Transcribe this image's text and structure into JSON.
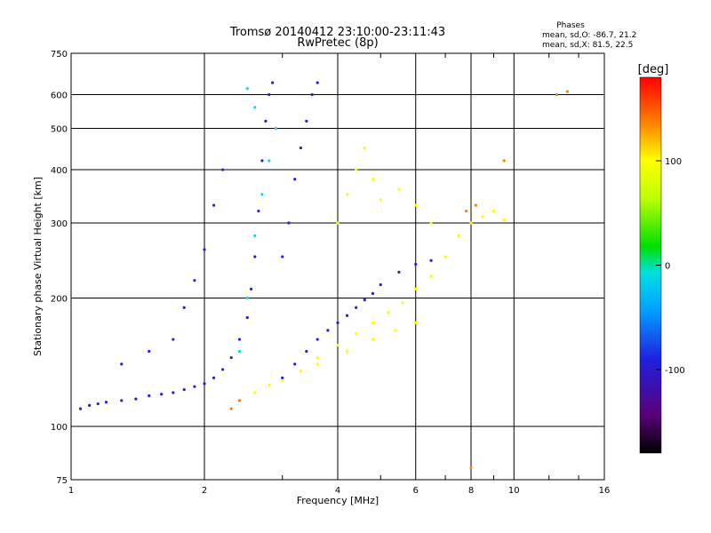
{
  "chart_data": {
    "type": "scatter",
    "title": "Tromsø 20140412 23:10:00-23:11:43",
    "subtitle": "RwPretec (8p)",
    "xlabel": "Frequency [MHz]",
    "ylabel": "Stationary phase Virtual Height [km]",
    "x_scale": "log",
    "y_scale": "log",
    "xlim": [
      1,
      16
    ],
    "ylim": [
      75,
      750
    ],
    "x_ticks": [
      1,
      2,
      4,
      6,
      8,
      10,
      16
    ],
    "y_ticks": [
      75,
      100,
      200,
      300,
      400,
      500,
      600,
      750
    ],
    "grid": true,
    "stats": {
      "heading": "Phases",
      "line_o": "mean, sd,O: -86.7, 21.2",
      "line_x": "mean, sd,X: 81.5, 22.5"
    },
    "colorbar": {
      "label": "[deg]",
      "range": [
        -180,
        180
      ],
      "ticks": [
        100,
        0,
        -100
      ],
      "colors": [
        "#000000",
        "#6a0080",
        "#2020e0",
        "#00a0ff",
        "#00e0e0",
        "#00e000",
        "#c0ff00",
        "#ffff00",
        "#ff8000",
        "#ff0000"
      ]
    },
    "series": [
      {
        "comment": "O-mode trace (blue/purple)",
        "phase": -95,
        "points": [
          [
            1.05,
            110
          ],
          [
            1.1,
            112
          ],
          [
            1.15,
            113
          ],
          [
            1.2,
            114
          ],
          [
            1.3,
            115
          ],
          [
            1.4,
            116
          ],
          [
            1.5,
            118
          ],
          [
            1.6,
            119
          ],
          [
            1.7,
            120
          ],
          [
            1.8,
            122
          ],
          [
            1.9,
            124
          ],
          [
            2.0,
            126
          ],
          [
            2.1,
            130
          ],
          [
            2.2,
            136
          ],
          [
            2.3,
            145
          ],
          [
            2.4,
            160
          ],
          [
            2.5,
            180
          ],
          [
            2.55,
            210
          ],
          [
            2.6,
            250
          ],
          [
            2.65,
            320
          ],
          [
            2.7,
            420
          ],
          [
            2.75,
            520
          ],
          [
            2.8,
            600
          ],
          [
            2.85,
            640
          ],
          [
            1.3,
            140
          ],
          [
            1.5,
            150
          ],
          [
            1.7,
            160
          ],
          [
            1.8,
            190
          ],
          [
            1.9,
            220
          ],
          [
            2.0,
            260
          ],
          [
            2.1,
            330
          ],
          [
            2.2,
            400
          ],
          [
            3.0,
            130
          ],
          [
            3.2,
            140
          ],
          [
            3.4,
            150
          ],
          [
            3.6,
            160
          ],
          [
            3.8,
            168
          ],
          [
            4.0,
            175
          ],
          [
            4.2,
            182
          ],
          [
            4.4,
            190
          ],
          [
            4.6,
            198
          ],
          [
            4.8,
            205
          ],
          [
            5.0,
            215
          ],
          [
            5.5,
            230
          ],
          [
            6.0,
            240
          ],
          [
            6.5,
            245
          ],
          [
            3.0,
            250
          ],
          [
            3.1,
            300
          ],
          [
            3.2,
            380
          ],
          [
            3.3,
            450
          ],
          [
            3.4,
            520
          ],
          [
            3.5,
            600
          ],
          [
            3.6,
            640
          ]
        ]
      },
      {
        "comment": "X-mode trace (yellow/green)",
        "phase": 80,
        "points": [
          [
            2.6,
            120
          ],
          [
            2.8,
            125
          ],
          [
            3.0,
            128
          ],
          [
            3.3,
            135
          ],
          [
            3.6,
            145
          ],
          [
            4.0,
            155
          ],
          [
            4.4,
            165
          ],
          [
            4.8,
            175
          ],
          [
            5.2,
            185
          ],
          [
            5.6,
            195
          ],
          [
            6.0,
            210
          ],
          [
            6.5,
            225
          ],
          [
            7.0,
            250
          ],
          [
            7.5,
            280
          ],
          [
            8.0,
            300
          ],
          [
            8.5,
            310
          ],
          [
            9.0,
            320
          ],
          [
            9.5,
            305
          ],
          [
            4.0,
            300
          ],
          [
            4.2,
            350
          ],
          [
            4.4,
            400
          ],
          [
            4.6,
            450
          ],
          [
            4.8,
            380
          ],
          [
            5.0,
            340
          ],
          [
            5.5,
            360
          ],
          [
            6.0,
            330
          ],
          [
            6.5,
            300
          ],
          [
            3.6,
            140
          ],
          [
            4.2,
            150
          ],
          [
            4.8,
            160
          ],
          [
            5.4,
            168
          ],
          [
            6.0,
            175
          ]
        ]
      },
      {
        "comment": "Mid-phase scatter (cyan)",
        "phase": -30,
        "points": [
          [
            2.4,
            150
          ],
          [
            2.5,
            200
          ],
          [
            2.6,
            280
          ],
          [
            2.7,
            350
          ],
          [
            2.8,
            420
          ],
          [
            2.9,
            500
          ],
          [
            2.6,
            560
          ],
          [
            2.5,
            620
          ]
        ]
      },
      {
        "comment": "Sparse orange/red outliers",
        "phase": 140,
        "points": [
          [
            2.3,
            110
          ],
          [
            2.4,
            115
          ],
          [
            7.8,
            320
          ],
          [
            8.2,
            330
          ],
          [
            12.5,
            600
          ],
          [
            13.2,
            610
          ],
          [
            8.0,
            80
          ],
          [
            9.5,
            420
          ]
        ]
      }
    ]
  }
}
